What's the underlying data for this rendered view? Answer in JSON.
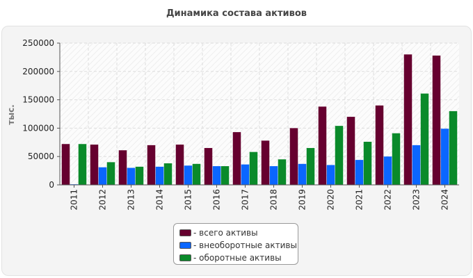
{
  "chart_data": {
    "type": "bar",
    "title": "Динамика состава активов",
    "ylabel": "тыс.",
    "xlabel": "",
    "ylim": [
      0,
      250000
    ],
    "yticks": [
      0,
      50000,
      100000,
      150000,
      200000,
      250000
    ],
    "categories": [
      "2011",
      "2012",
      "2013",
      "2014",
      "2015",
      "2016",
      "2017",
      "2018",
      "2019",
      "2020",
      "2021",
      "2022",
      "2023",
      "2024"
    ],
    "series": [
      {
        "name": "всего активы",
        "label": "- всего активы",
        "color": "#66002f",
        "values": [
          72000,
          71000,
          61000,
          70000,
          71000,
          65000,
          93000,
          78000,
          100000,
          138000,
          120000,
          140000,
          230000,
          228000
        ]
      },
      {
        "name": "внеоборотные активы",
        "label": "- внеоборотные активы",
        "color": "#0a66ff",
        "values": [
          1000,
          31000,
          30000,
          32000,
          34000,
          33000,
          36000,
          33000,
          37000,
          35000,
          44000,
          50000,
          70000,
          99000
        ]
      },
      {
        "name": "оборотные активы",
        "label": "- оборотные активы",
        "color": "#0a8a2a",
        "values": [
          72000,
          40000,
          32000,
          38000,
          37000,
          33000,
          58000,
          45000,
          65000,
          104000,
          76000,
          91000,
          161000,
          130000
        ]
      }
    ],
    "grid": true,
    "legend_position": "bottom-center"
  }
}
